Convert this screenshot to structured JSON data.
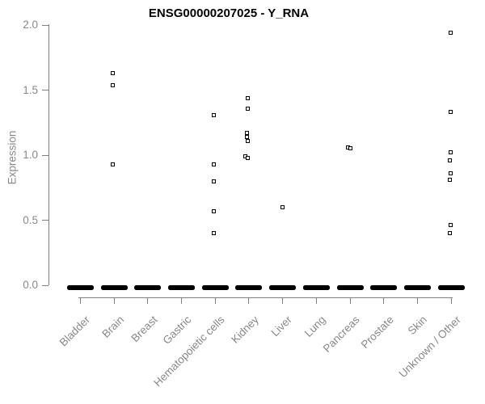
{
  "chart_data": {
    "type": "scatter",
    "subtype": "strip-plot",
    "title": "ENSG00000207025 - Y_RNA",
    "xlabel": "",
    "ylabel": "Expression",
    "ylim": [
      0,
      2
    ],
    "ytick_values": [
      0,
      0.5,
      1,
      1.5,
      2
    ],
    "ytick_labels": [
      "0.0",
      "0.5",
      "1.0",
      "1.5",
      "2.0"
    ],
    "grid": false,
    "legend": false,
    "marker": "open-square",
    "zero_dash_note": "thick solid black dash at expression 0.0 in every category (overplotted zero-expression samples)",
    "categories": [
      "Bladder",
      "Brain",
      "Breast",
      "Gastric",
      "Hematopoietic cells",
      "Kidney",
      "Liver",
      "Lung",
      "Pancreas",
      "Prostate",
      "Skin",
      "Unknown / Other"
    ],
    "series": [
      {
        "category": "Bladder",
        "zero_cluster": true,
        "points": []
      },
      {
        "category": "Brain",
        "zero_cluster": true,
        "points": [
          {
            "v": 1.63,
            "dx": -1.5
          },
          {
            "v": 1.54,
            "dx": -1.5
          },
          {
            "v": 0.93,
            "dx": -1.5
          }
        ]
      },
      {
        "category": "Breast",
        "zero_cluster": true,
        "points": []
      },
      {
        "category": "Gastric",
        "zero_cluster": true,
        "points": []
      },
      {
        "category": "Hematopoietic cells",
        "zero_cluster": true,
        "points": [
          {
            "v": 1.31,
            "dx": -1.5
          },
          {
            "v": 0.93,
            "dx": -2
          },
          {
            "v": 0.8,
            "dx": -1.5
          },
          {
            "v": 0.57,
            "dx": -2
          },
          {
            "v": 0.4,
            "dx": -2
          }
        ]
      },
      {
        "category": "Kidney",
        "zero_cluster": true,
        "points": [
          {
            "v": 1.44,
            "dx": -1.5
          },
          {
            "v": 1.36,
            "dx": -1.5
          },
          {
            "v": 1.17,
            "dx": -2
          },
          {
            "v": 1.14,
            "dx": -2
          },
          {
            "v": 1.11,
            "dx": -1.5
          },
          {
            "v": 0.99,
            "dx": -4.5
          },
          {
            "v": 0.98,
            "dx": -1
          }
        ]
      },
      {
        "category": "Liver",
        "zero_cluster": true,
        "points": [
          {
            "v": 0.6,
            "dx": 0
          }
        ]
      },
      {
        "category": "Lung",
        "zero_cluster": true,
        "points": []
      },
      {
        "category": "Pancreas",
        "zero_cluster": true,
        "points": [
          {
            "v": 1.06,
            "dx": -3
          },
          {
            "v": 1.05,
            "dx": 0.5
          }
        ]
      },
      {
        "category": "Prostate",
        "zero_cluster": true,
        "points": []
      },
      {
        "category": "Skin",
        "zero_cluster": true,
        "points": []
      },
      {
        "category": "Unknown / Other",
        "zero_cluster": true,
        "points": [
          {
            "v": 1.94,
            "dx": -1
          },
          {
            "v": 1.33,
            "dx": -1
          },
          {
            "v": 1.02,
            "dx": -1
          },
          {
            "v": 0.96,
            "dx": -1.5
          },
          {
            "v": 0.86,
            "dx": -1
          },
          {
            "v": 0.81,
            "dx": -1.5
          },
          {
            "v": 0.46,
            "dx": -1
          },
          {
            "v": 0.4,
            "dx": -1.5
          }
        ]
      }
    ]
  },
  "colors": {
    "background": "#ffffff",
    "title_text": "#000000",
    "axis_line": "#808080",
    "axis_text": "#888888",
    "marker_stroke": "#000000",
    "zero_dash": "#000000"
  }
}
